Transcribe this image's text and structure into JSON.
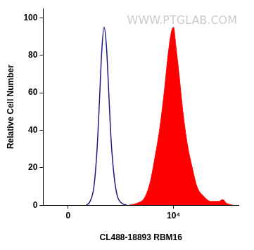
{
  "chart_data": {
    "type": "line",
    "x_label": "CL488-18893 RBM16",
    "y_label": "Relative Cell Number",
    "watermark": "WWW.PTGLAB.COM",
    "log": "x",
    "grid": false,
    "xlim": [
      -160,
      262144
    ],
    "xticks": [
      0,
      {
        "value": 10000,
        "label": "10⁴"
      }
    ],
    "ylim": [
      0,
      105
    ],
    "yticks": [
      0,
      20,
      40,
      60,
      80,
      100
    ],
    "series": [
      {
        "type": "line",
        "color": "#1c1c80",
        "x": [
          104,
          134,
          170,
          203,
          231,
          262,
          296,
          336,
          380,
          428,
          503,
          589,
          748,
          948
        ],
        "values": [
          0,
          2,
          10,
          30,
          55,
          82,
          95,
          85,
          60,
          35,
          15,
          5,
          1,
          0
        ]
      },
      {
        "type": "area",
        "color": "#ff0000",
        "x": [
          1067,
          1580,
          2340,
          3080,
          3900,
          4940,
          6250,
          7600,
          8900,
          10000,
          11250,
          13160,
          16000,
          20200,
          25600,
          32400,
          44400,
          65600,
          97000,
          118200,
          143800,
          196600
        ],
        "values": [
          0,
          1,
          4,
          12,
          25,
          40,
          60,
          80,
          92,
          95,
          85,
          70,
          50,
          32,
          20,
          10,
          5,
          2,
          2,
          3,
          1,
          0
        ]
      }
    ]
  }
}
